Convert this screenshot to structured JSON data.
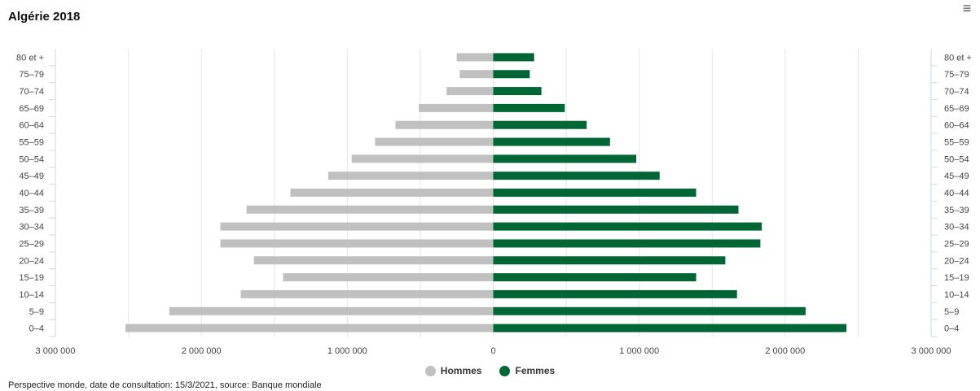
{
  "menu_icon": "hamburger-menu-icon",
  "chart_data": {
    "type": "bar",
    "orientation": "horizontal",
    "title": "Algérie 2018",
    "categories": [
      "80 et +",
      "75–79",
      "70–74",
      "65–69",
      "60–64",
      "55–59",
      "50–54",
      "45–49",
      "40–44",
      "35–39",
      "30–34",
      "25–29",
      "20–24",
      "15–19",
      "10–14",
      "5–9",
      "0–4"
    ],
    "series": [
      {
        "name": "Hommes",
        "color": "#c0c0c0",
        "side": "left",
        "values": [
          250000,
          230000,
          320000,
          510000,
          670000,
          810000,
          970000,
          1130000,
          1390000,
          1690000,
          1870000,
          1870000,
          1640000,
          1440000,
          1730000,
          2220000,
          2520000
        ]
      },
      {
        "name": "Femmes",
        "color": "#006633",
        "side": "right",
        "values": [
          280000,
          250000,
          330000,
          490000,
          640000,
          800000,
          980000,
          1140000,
          1390000,
          1680000,
          1840000,
          1830000,
          1590000,
          1390000,
          1670000,
          2140000,
          2420000
        ]
      }
    ],
    "x_ticks": [
      "3 000 000",
      "2 000 000",
      "1 000 000",
      "0",
      "1 000 000",
      "2 000 000",
      "3 000 000"
    ],
    "x_tick_values": [
      -3000000,
      -2000000,
      -1000000,
      0,
      1000000,
      2000000,
      3000000
    ],
    "xlim": [
      -3000000,
      3000000
    ],
    "grid": true,
    "legend_position": "bottom-center"
  },
  "credits": "Perspective monde, date de consultation: 15/3/2021, source: Banque mondiale"
}
